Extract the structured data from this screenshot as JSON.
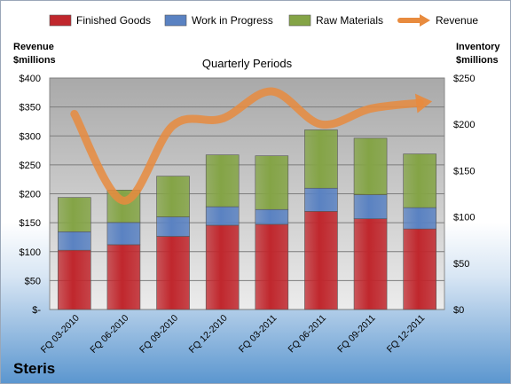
{
  "chart_data": {
    "type": "bar",
    "title": "Quarterly Periods",
    "company": "Steris",
    "left_axis_label": [
      "Revenue",
      "$millions"
    ],
    "right_axis_label": [
      "Inventory",
      "$millions"
    ],
    "categories": [
      "FQ 03-2010",
      "FQ 06-2010",
      "FQ 09-2010",
      "FQ 12-2010",
      "FQ 03-2011",
      "FQ 06-2011",
      "FQ 09-2011",
      "FQ 12-2011"
    ],
    "left_ylim": [
      0,
      400
    ],
    "right_ylim": [
      0,
      250
    ],
    "left_ticks": [
      "$-",
      "$50",
      "$100",
      "$150",
      "$200",
      "$250",
      "$300",
      "$350",
      "$400"
    ],
    "right_ticks": [
      "$0",
      "$50",
      "$100",
      "$150",
      "$200",
      "$250"
    ],
    "grid": true,
    "legend_position": "top",
    "series": [
      {
        "name": "Finished Goods",
        "kind": "stacked-bar",
        "axis": "right",
        "color": "#c0272d",
        "values": [
          64,
          70,
          79,
          91,
          92,
          106,
          98,
          87
        ]
      },
      {
        "name": "Work in Progress",
        "kind": "stacked-bar",
        "axis": "right",
        "color": "#5a82c2",
        "values": [
          20,
          24,
          21,
          20,
          16,
          25,
          26,
          23
        ]
      },
      {
        "name": "Raw Materials",
        "kind": "stacked-bar",
        "axis": "right",
        "color": "#84a446",
        "values": [
          37,
          35,
          44,
          56,
          58,
          63,
          61,
          58
        ]
      },
      {
        "name": "Revenue",
        "kind": "line",
        "axis": "left",
        "color": "#e88b3e",
        "values": [
          338,
          188,
          318,
          330,
          377,
          320,
          347,
          357
        ]
      }
    ]
  }
}
